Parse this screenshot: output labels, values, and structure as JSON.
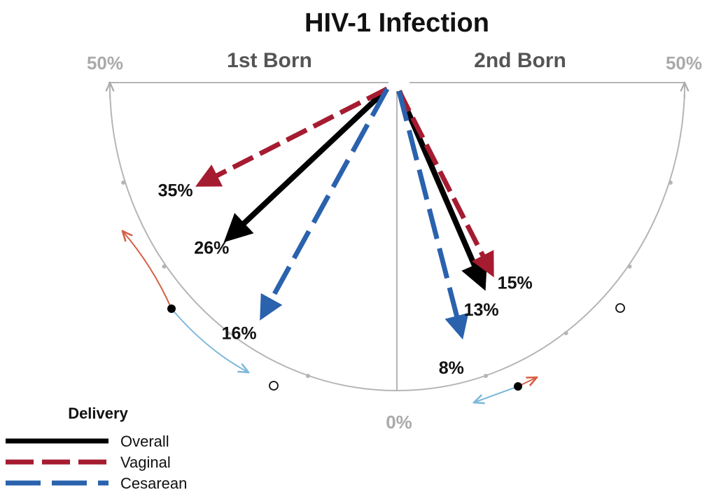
{
  "chart_data": {
    "type": "radial-arrow",
    "title": "HIV-1 Infection",
    "axis_max_label": "50%",
    "axis_min_label": "0%",
    "axis_max": 50,
    "panels": [
      {
        "name": "1st Born",
        "side": "left"
      },
      {
        "name": "2nd Born",
        "side": "right"
      }
    ],
    "series": [
      {
        "name": "Overall",
        "color": "#000000",
        "style": "solid",
        "values": [
          26,
          13
        ],
        "labels": [
          "26%",
          "13%"
        ]
      },
      {
        "name": "Vaginal",
        "color": "#a51c30",
        "style": "dashed",
        "values": [
          35,
          15
        ],
        "labels": [
          "35%",
          "15%"
        ]
      },
      {
        "name": "Cesarean",
        "color": "#2a62ad",
        "style": "long-dashed",
        "values": [
          16,
          8
        ],
        "labels": [
          "16%",
          "8%"
        ]
      }
    ],
    "legend": {
      "title": "Delivery",
      "placement": "bottom-left"
    }
  }
}
